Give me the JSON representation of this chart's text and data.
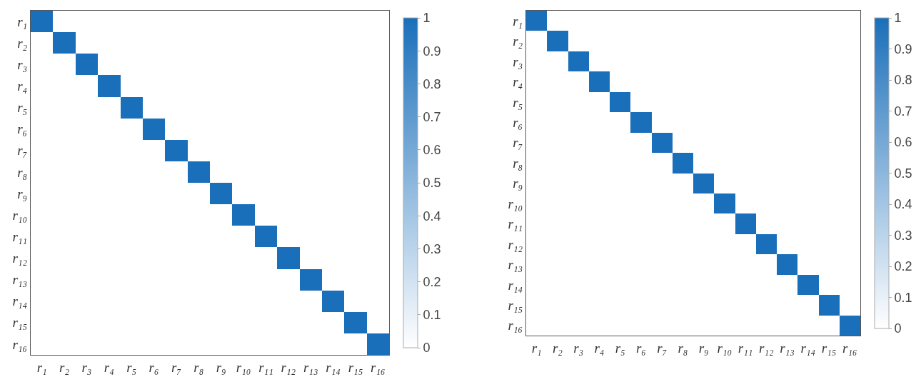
{
  "chart_data": [
    {
      "type": "heatmap",
      "categories": [
        "r₁",
        "r₂",
        "r₃",
        "r₄",
        "r₅",
        "r₆",
        "r₇",
        "r₈",
        "r₉",
        "r₁₀",
        "r₁₁",
        "r₁₂",
        "r₁₃",
        "r₁₄",
        "r₁₅",
        "r₁₆"
      ],
      "y_categories": [
        "r₁",
        "r₂",
        "r₃",
        "r₄",
        "r₅",
        "r₆",
        "r₇",
        "r₈",
        "r₉",
        "r₁₀",
        "r₁₁",
        "r₁₂",
        "r₁₃",
        "r₁₄",
        "r₁₅",
        "r₁₆"
      ],
      "cells": [
        [
          1,
          0,
          0,
          0,
          0,
          0,
          0,
          0,
          0,
          0,
          0,
          0,
          0,
          0,
          0,
          0
        ],
        [
          0,
          1,
          0,
          0,
          0,
          0,
          0,
          0,
          0,
          0,
          0,
          0,
          0,
          0,
          0,
          0
        ],
        [
          0,
          0,
          1,
          0,
          0,
          0,
          0,
          0,
          0,
          0,
          0,
          0,
          0,
          0,
          0,
          0
        ],
        [
          0,
          0,
          0,
          1,
          0,
          0,
          0,
          0,
          0,
          0,
          0,
          0,
          0,
          0,
          0,
          0
        ],
        [
          0,
          0,
          0,
          0,
          1,
          0,
          0,
          0,
          0,
          0,
          0,
          0,
          0,
          0,
          0,
          0
        ],
        [
          0,
          0,
          0,
          0,
          0,
          1,
          0,
          0,
          0,
          0,
          0,
          0,
          0,
          0,
          0,
          0
        ],
        [
          0,
          0,
          0,
          0,
          0,
          0,
          1,
          0,
          0,
          0,
          0,
          0,
          0,
          0,
          0,
          0
        ],
        [
          0,
          0,
          0,
          0,
          0,
          0,
          0,
          1,
          0,
          0,
          0,
          0,
          0,
          0,
          0,
          0
        ],
        [
          0,
          0,
          0,
          0,
          0,
          0,
          0,
          0,
          1,
          0,
          0,
          0,
          0,
          0,
          0,
          0
        ],
        [
          0,
          0,
          0,
          0,
          0,
          0,
          0,
          0,
          0,
          1,
          0,
          0,
          0,
          0,
          0,
          0
        ],
        [
          0,
          0,
          0,
          0,
          0,
          0,
          0,
          0,
          0,
          0,
          1,
          0,
          0,
          0,
          0,
          0
        ],
        [
          0,
          0,
          0,
          0,
          0,
          0,
          0,
          0,
          0,
          0,
          0,
          1,
          0,
          0,
          0,
          0
        ],
        [
          0,
          0,
          0,
          0,
          0,
          0,
          0,
          0,
          0,
          0,
          0,
          0,
          1,
          0,
          0,
          0
        ],
        [
          0,
          0,
          0,
          0,
          0,
          0,
          0,
          0,
          0,
          0,
          0,
          0,
          0,
          1,
          0,
          0
        ],
        [
          0,
          0,
          0,
          0,
          0,
          0,
          0,
          0,
          0,
          0,
          0,
          0,
          0,
          0,
          1,
          0
        ],
        [
          0,
          0,
          0,
          0,
          0,
          0,
          0,
          0,
          0,
          0,
          0,
          0,
          0,
          0,
          0,
          1
        ]
      ],
      "colors": [
        "#ffffff",
        "#1a6fba"
      ],
      "clim": [
        0,
        1
      ],
      "cticks": [
        0,
        0.1,
        0.2,
        0.3,
        0.4,
        0.5,
        0.6,
        0.7,
        0.8,
        0.9,
        1
      ]
    },
    {
      "type": "heatmap",
      "categories": [
        "r₁",
        "r₂",
        "r₃",
        "r₄",
        "r₅",
        "r₆",
        "r₇",
        "r₈",
        "r₉",
        "r₁₀",
        "r₁₁",
        "r₁₂",
        "r₁₃",
        "r₁₄",
        "r₁₅",
        "r₁₆"
      ],
      "y_categories": [
        "r₁",
        "r₂",
        "r₃",
        "r₄",
        "r₅",
        "r₆",
        "r₇",
        "r₈",
        "r₉",
        "r₁₀",
        "r₁₁",
        "r₁₂",
        "r₁₃",
        "r₁₄",
        "r₁₅",
        "r₁₆"
      ],
      "cells": [
        [
          1,
          0,
          0,
          0,
          0,
          0,
          0,
          0,
          0,
          0,
          0,
          0,
          0,
          0,
          0,
          0
        ],
        [
          0,
          1,
          0,
          0,
          0,
          0,
          0,
          0,
          0,
          0,
          0,
          0,
          0,
          0,
          0,
          0
        ],
        [
          0,
          0,
          1,
          0,
          0,
          0,
          0,
          0,
          0,
          0,
          0,
          0,
          0,
          0,
          0,
          0
        ],
        [
          0,
          0,
          0,
          1,
          0,
          0,
          0,
          0,
          0,
          0,
          0,
          0,
          0,
          0,
          0,
          0
        ],
        [
          0,
          0,
          0,
          0,
          1,
          0,
          0,
          0,
          0,
          0,
          0,
          0,
          0,
          0,
          0,
          0
        ],
        [
          0,
          0,
          0,
          0,
          0,
          1,
          0,
          0,
          0,
          0,
          0,
          0,
          0,
          0,
          0,
          0
        ],
        [
          0,
          0,
          0,
          0,
          0,
          0,
          1,
          0,
          0,
          0,
          0,
          0,
          0,
          0,
          0,
          0
        ],
        [
          0,
          0,
          0,
          0,
          0,
          0,
          0,
          1,
          0,
          0,
          0,
          0,
          0,
          0,
          0,
          0
        ],
        [
          0,
          0,
          0,
          0,
          0,
          0,
          0,
          0,
          1,
          0,
          0,
          0,
          0,
          0,
          0,
          0
        ],
        [
          0,
          0,
          0,
          0,
          0,
          0,
          0,
          0,
          0,
          1,
          0,
          0,
          0,
          0,
          0,
          0
        ],
        [
          0,
          0,
          0,
          0,
          0,
          0,
          0,
          0,
          0,
          0,
          1,
          0,
          0,
          0,
          0,
          0
        ],
        [
          0,
          0,
          0,
          0,
          0,
          0,
          0,
          0,
          0,
          0,
          0,
          1,
          0,
          0,
          0,
          0
        ],
        [
          0,
          0,
          0,
          0,
          0,
          0,
          0,
          0,
          0,
          0,
          0,
          0,
          1,
          0,
          0,
          0
        ],
        [
          0,
          0,
          0,
          0,
          0,
          0,
          0,
          0,
          0,
          0,
          0,
          0,
          0,
          1,
          0,
          0
        ],
        [
          0,
          0,
          0,
          0,
          0,
          0,
          0,
          0,
          0,
          0,
          0,
          0,
          0,
          0,
          1,
          0
        ],
        [
          0,
          0,
          0,
          0,
          0,
          0,
          0,
          0,
          0,
          0,
          0,
          0,
          0,
          0,
          0,
          1
        ]
      ],
      "colors": [
        "#ffffff",
        "#1a6fba"
      ],
      "clim": [
        0,
        1
      ],
      "cticks": [
        0,
        0.1,
        0.2,
        0.3,
        0.4,
        0.5,
        0.6,
        0.7,
        0.8,
        0.9,
        1
      ]
    }
  ]
}
